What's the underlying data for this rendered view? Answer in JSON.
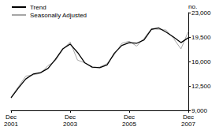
{
  "chart_data": {
    "type": "line",
    "categories": [
      "Dec\n2001",
      null,
      null,
      null,
      null,
      null,
      null,
      null,
      "Dec\n2003",
      null,
      null,
      null,
      null,
      null,
      null,
      null,
      "Dec\n2005",
      null,
      null,
      null,
      null,
      null,
      null,
      null,
      "Dec\n2007"
    ],
    "series": [
      {
        "name": "Trend",
        "color": "#000000",
        "values": [
          10800,
          12200,
          13500,
          14200,
          14400,
          15000,
          16300,
          17800,
          18500,
          17300,
          15800,
          15200,
          15100,
          15500,
          17200,
          18300,
          18700,
          18600,
          19100,
          20600,
          20800,
          20200,
          19500,
          18700,
          19400
        ]
      },
      {
        "name": "Seasonally Adjusted",
        "color": "#a6a6a6",
        "values": [
          10900,
          12400,
          13900,
          14100,
          14300,
          15400,
          16100,
          17700,
          18800,
          16200,
          15800,
          15100,
          15200,
          15700,
          17000,
          18600,
          18900,
          18200,
          19300,
          20700,
          20600,
          20500,
          19300,
          17800,
          20300
        ]
      }
    ],
    "y_label": "no.",
    "ylim": [
      9000,
      23000
    ],
    "yticks": [
      9000,
      12500,
      16000,
      19500,
      23000
    ],
    "grid": false,
    "legend": "top-left"
  }
}
